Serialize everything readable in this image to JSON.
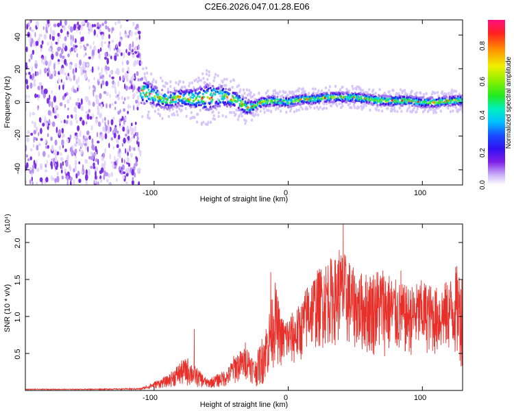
{
  "title": "C2E6.2026.047.01.28.E06",
  "chart_data": [
    {
      "type": "heatmap",
      "name": "spectrogram",
      "xlabel": "Height of straight line (km)",
      "ylabel": "Frequency (Hz)",
      "xlim": [
        -196,
        130
      ],
      "ylim": [
        -49,
        49
      ],
      "xticks": [
        -100,
        0,
        100
      ],
      "yticks": [
        -40,
        -20,
        0,
        20,
        40
      ],
      "xtick_labels": [
        "-100",
        "0",
        "100"
      ],
      "ytick_labels": [
        "-40",
        "-20",
        "0",
        "20",
        "40"
      ],
      "noise_region_x": [
        -196,
        -110
      ],
      "signal_band": {
        "x": [
          -110,
          -100,
          -90,
          -80,
          -70,
          -60,
          -50,
          -40,
          -30,
          -25,
          -20,
          -10,
          0,
          10,
          20,
          30,
          40,
          50,
          60,
          70,
          80,
          90,
          100,
          110,
          120,
          130
        ],
        "center": [
          7,
          4,
          1,
          3,
          2,
          3,
          4,
          2,
          -3,
          -2,
          0,
          1,
          0,
          2,
          2,
          3,
          3,
          3,
          2,
          1,
          1,
          1,
          0,
          0,
          1,
          1
        ],
        "halfwidth": [
          8,
          6,
          5,
          5,
          6,
          8,
          6,
          5,
          5,
          3,
          3,
          3,
          3,
          3,
          3,
          3,
          3,
          3,
          3,
          3,
          3,
          3,
          3,
          3,
          3,
          3
        ]
      },
      "colorbar": {
        "label": "Normalized spectral amplitude",
        "range": [
          0,
          0.95
        ],
        "ticks": [
          0.0,
          0.2,
          0.4,
          0.6,
          0.8
        ],
        "tick_labels": [
          "0.0",
          "0.2",
          "0.4",
          "0.6",
          "0.8"
        ]
      }
    },
    {
      "type": "line",
      "name": "snr",
      "color": "#e8302a",
      "xlabel": "Height of straight line (km)",
      "ylabel": "SNR (10 * v/v)",
      "multiplier": "(x10⁴)",
      "xlim": [
        -196,
        130
      ],
      "ylim": [
        0,
        2.25
      ],
      "xticks": [
        -100,
        0,
        100
      ],
      "yticks": [
        0.5,
        1.0,
        1.5,
        2.0
      ],
      "xtick_labels": [
        "-100",
        "0",
        "100"
      ],
      "ytick_labels": [
        "0.5",
        "1.0",
        "1.5",
        "2.0"
      ],
      "envelope": {
        "x": [
          -196,
          -150,
          -110,
          -100,
          -90,
          -80,
          -75,
          -70,
          -60,
          -50,
          -45,
          -40,
          -30,
          -25,
          -20,
          -15,
          -10,
          -5,
          0,
          5,
          10,
          15,
          20,
          25,
          30,
          35,
          40,
          45,
          50,
          60,
          70,
          80,
          90,
          100,
          110,
          120,
          125,
          130
        ],
        "upper": [
          0.02,
          0.02,
          0.03,
          0.12,
          0.2,
          0.4,
          0.45,
          0.35,
          0.15,
          0.25,
          0.3,
          0.5,
          0.6,
          0.4,
          0.7,
          1.0,
          1.5,
          1.0,
          1.0,
          1.1,
          1.2,
          1.5,
          1.6,
          1.7,
          1.8,
          1.8,
          1.9,
          1.8,
          1.6,
          1.6,
          1.7,
          1.5,
          1.4,
          1.5,
          1.4,
          1.5,
          1.7,
          1.6
        ],
        "lower": [
          0.01,
          0.01,
          0.01,
          0.02,
          0.04,
          0.05,
          0.05,
          0.04,
          0.03,
          0.04,
          0.05,
          0.08,
          0.15,
          0.05,
          0.05,
          0.15,
          0.35,
          0.3,
          0.35,
          0.3,
          0.4,
          0.5,
          0.55,
          0.55,
          0.6,
          0.6,
          0.6,
          0.55,
          0.55,
          0.45,
          0.45,
          0.45,
          0.45,
          0.5,
          0.45,
          0.5,
          0.4,
          0.3
        ]
      },
      "peaks": [
        {
          "x": 41,
          "y": 2.25
        },
        {
          "x": 38,
          "y": 1.9
        },
        {
          "x": -70,
          "y": 0.83
        },
        {
          "x": -13,
          "y": 1.6
        },
        {
          "x": -32,
          "y": 0.65
        },
        {
          "x": 84,
          "y": 1.62
        }
      ]
    }
  ]
}
